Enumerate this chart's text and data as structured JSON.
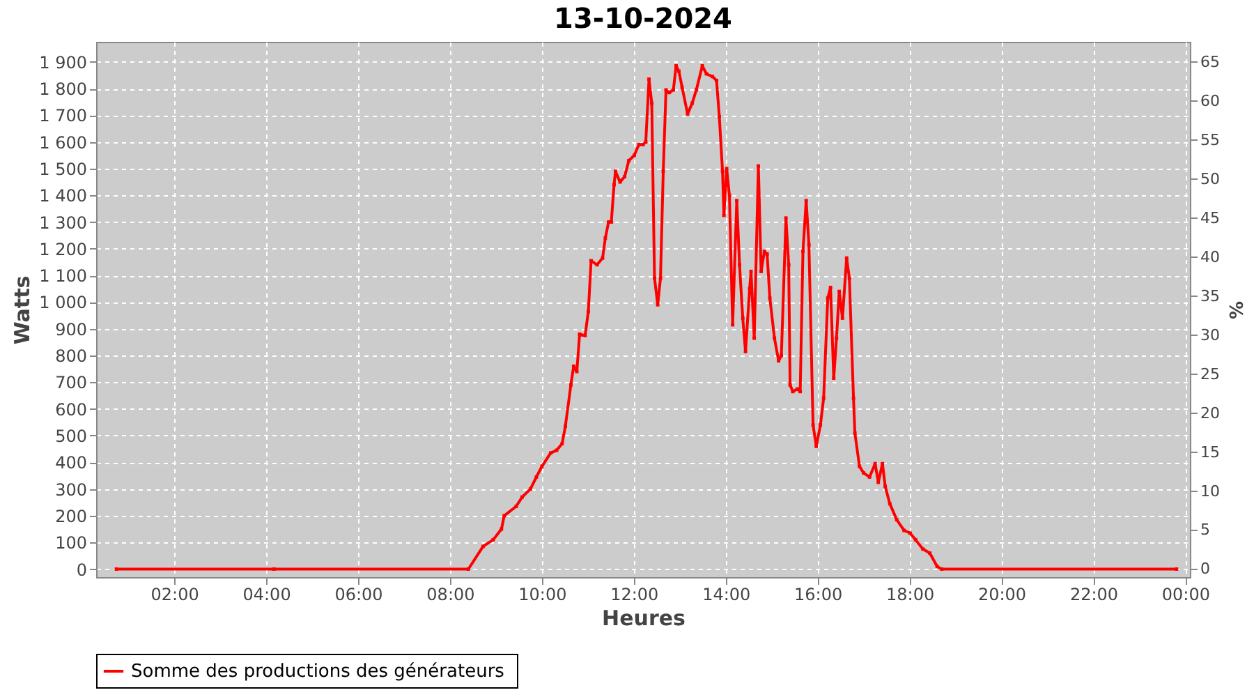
{
  "chart_data": {
    "type": "line",
    "title": "13-10-2024",
    "xlabel": "Heures",
    "ylabel": "Watts",
    "y2label": "%",
    "xlim": [
      0.3,
      24.1
    ],
    "xticks": [
      {
        "value": 2,
        "label": "02:00"
      },
      {
        "value": 4,
        "label": "04:00"
      },
      {
        "value": 6,
        "label": "06:00"
      },
      {
        "value": 8,
        "label": "08:00"
      },
      {
        "value": 10,
        "label": "10:00"
      },
      {
        "value": 12,
        "label": "12:00"
      },
      {
        "value": 14,
        "label": "14:00"
      },
      {
        "value": 16,
        "label": "16:00"
      },
      {
        "value": 18,
        "label": "18:00"
      },
      {
        "value": 20,
        "label": "20:00"
      },
      {
        "value": 22,
        "label": "22:00"
      },
      {
        "value": 24,
        "label": "00:00"
      }
    ],
    "ylim": [
      -30,
      1975
    ],
    "yticks": [
      0,
      100,
      200,
      300,
      400,
      500,
      600,
      700,
      800,
      900,
      {
        "value": 1000,
        "label": "1 000"
      },
      {
        "value": 1100,
        "label": "1 100"
      },
      {
        "value": 1200,
        "label": "1 200"
      },
      {
        "value": 1300,
        "label": "1 300"
      },
      {
        "value": 1400,
        "label": "1 400"
      },
      {
        "value": 1500,
        "label": "1 500"
      },
      {
        "value": 1600,
        "label": "1 600"
      },
      {
        "value": 1700,
        "label": "1 700"
      },
      {
        "value": 1800,
        "label": "1 800"
      },
      {
        "value": 1900,
        "label": "1 900"
      }
    ],
    "y2lim": [
      -1.03,
      67.57
    ],
    "y2ticks": [
      0,
      5,
      10,
      15,
      20,
      25,
      30,
      35,
      40,
      45,
      50,
      55,
      60,
      65
    ],
    "grid": true,
    "legend": "bottom",
    "marker": "square",
    "line_style": "solid",
    "series": [
      {
        "name": "Somme des productions des  générateurs",
        "color": "#ff0000",
        "x": [
          0.74,
          4.17,
          8.4,
          8.72,
          8.94,
          9.12,
          9.18,
          9.44,
          9.57,
          9.75,
          9.88,
          10.0,
          10.19,
          10.32,
          10.44,
          10.51,
          10.63,
          10.69,
          10.76,
          10.82,
          10.94,
          11.01,
          11.07,
          11.2,
          11.32,
          11.38,
          11.45,
          11.51,
          11.57,
          11.6,
          11.7,
          11.8,
          11.89,
          12.01,
          12.11,
          12.2,
          12.26,
          12.33,
          12.39,
          12.45,
          12.52,
          12.58,
          12.64,
          12.7,
          12.77,
          12.86,
          12.92,
          12.98,
          13.05,
          13.17,
          13.27,
          13.36,
          13.49,
          13.58,
          13.71,
          13.8,
          13.86,
          13.93,
          13.96,
          14.02,
          14.08,
          14.15,
          14.24,
          14.3,
          14.37,
          14.43,
          14.52,
          14.55,
          14.62,
          14.71,
          14.77,
          14.84,
          14.9,
          14.96,
          15.06,
          15.15,
          15.21,
          15.31,
          15.37,
          15.4,
          15.46,
          15.56,
          15.62,
          15.68,
          15.75,
          15.81,
          15.9,
          15.97,
          16.06,
          16.13,
          16.22,
          16.28,
          16.35,
          16.41,
          16.47,
          16.54,
          16.63,
          16.69,
          16.78,
          16.81,
          16.91,
          17.0,
          17.13,
          17.25,
          17.32,
          17.41,
          17.47,
          17.57,
          17.72,
          17.88,
          18.01,
          18.13,
          18.29,
          18.44,
          18.6,
          18.7,
          23.81
        ],
        "values": [
          0,
          0,
          0,
          85,
          110,
          150,
          200,
          235,
          270,
          300,
          345,
          385,
          435,
          445,
          470,
          535,
          690,
          760,
          740,
          880,
          875,
          965,
          1155,
          1140,
          1165,
          1240,
          1300,
          1300,
          1440,
          1490,
          1450,
          1470,
          1530,
          1550,
          1590,
          1590,
          1600,
          1835,
          1745,
          1090,
          990,
          1090,
          1490,
          1795,
          1785,
          1795,
          1885,
          1865,
          1805,
          1705,
          1745,
          1795,
          1885,
          1855,
          1845,
          1830,
          1695,
          1490,
          1325,
          1500,
          1400,
          915,
          1380,
          1140,
          940,
          815,
          1050,
          1115,
          865,
          1510,
          1115,
          1190,
          1180,
          1015,
          865,
          780,
          800,
          1315,
          1140,
          690,
          665,
          675,
          665,
          1190,
          1380,
          1215,
          540,
          460,
          540,
          640,
          1015,
          1055,
          715,
          865,
          1040,
          940,
          1165,
          1090,
          640,
          510,
          385,
          360,
          345,
          395,
          325,
          395,
          310,
          245,
          185,
          145,
          135,
          110,
          75,
          60,
          10,
          0,
          0
        ]
      }
    ]
  }
}
